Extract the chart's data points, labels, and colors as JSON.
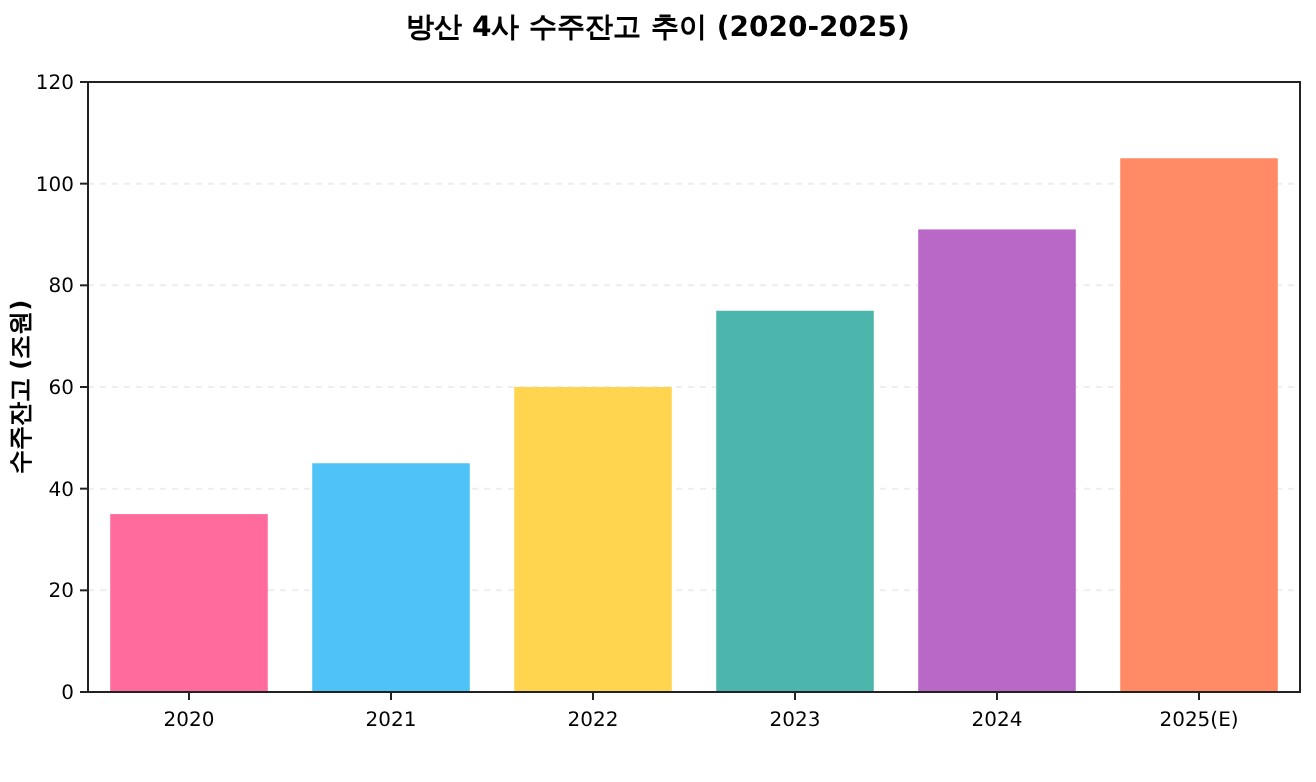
{
  "chart_data": {
    "type": "bar",
    "title": "방산 4사 수주잔고 추이 (2020-2025)",
    "ylabel": "수주잔고 (조원)",
    "categories": [
      "2020",
      "2021",
      "2022",
      "2023",
      "2024",
      "2025(E)"
    ],
    "values": [
      35,
      45,
      60,
      75,
      91,
      105
    ],
    "colors": [
      "#ff6b9d",
      "#4fc3f7",
      "#ffd54f",
      "#4db6ac",
      "#ba68c8",
      "#ff8a65"
    ],
    "ylim": [
      0,
      120
    ],
    "yticks": [
      0,
      20,
      40,
      60,
      80,
      100,
      120
    ],
    "grid": "y"
  }
}
